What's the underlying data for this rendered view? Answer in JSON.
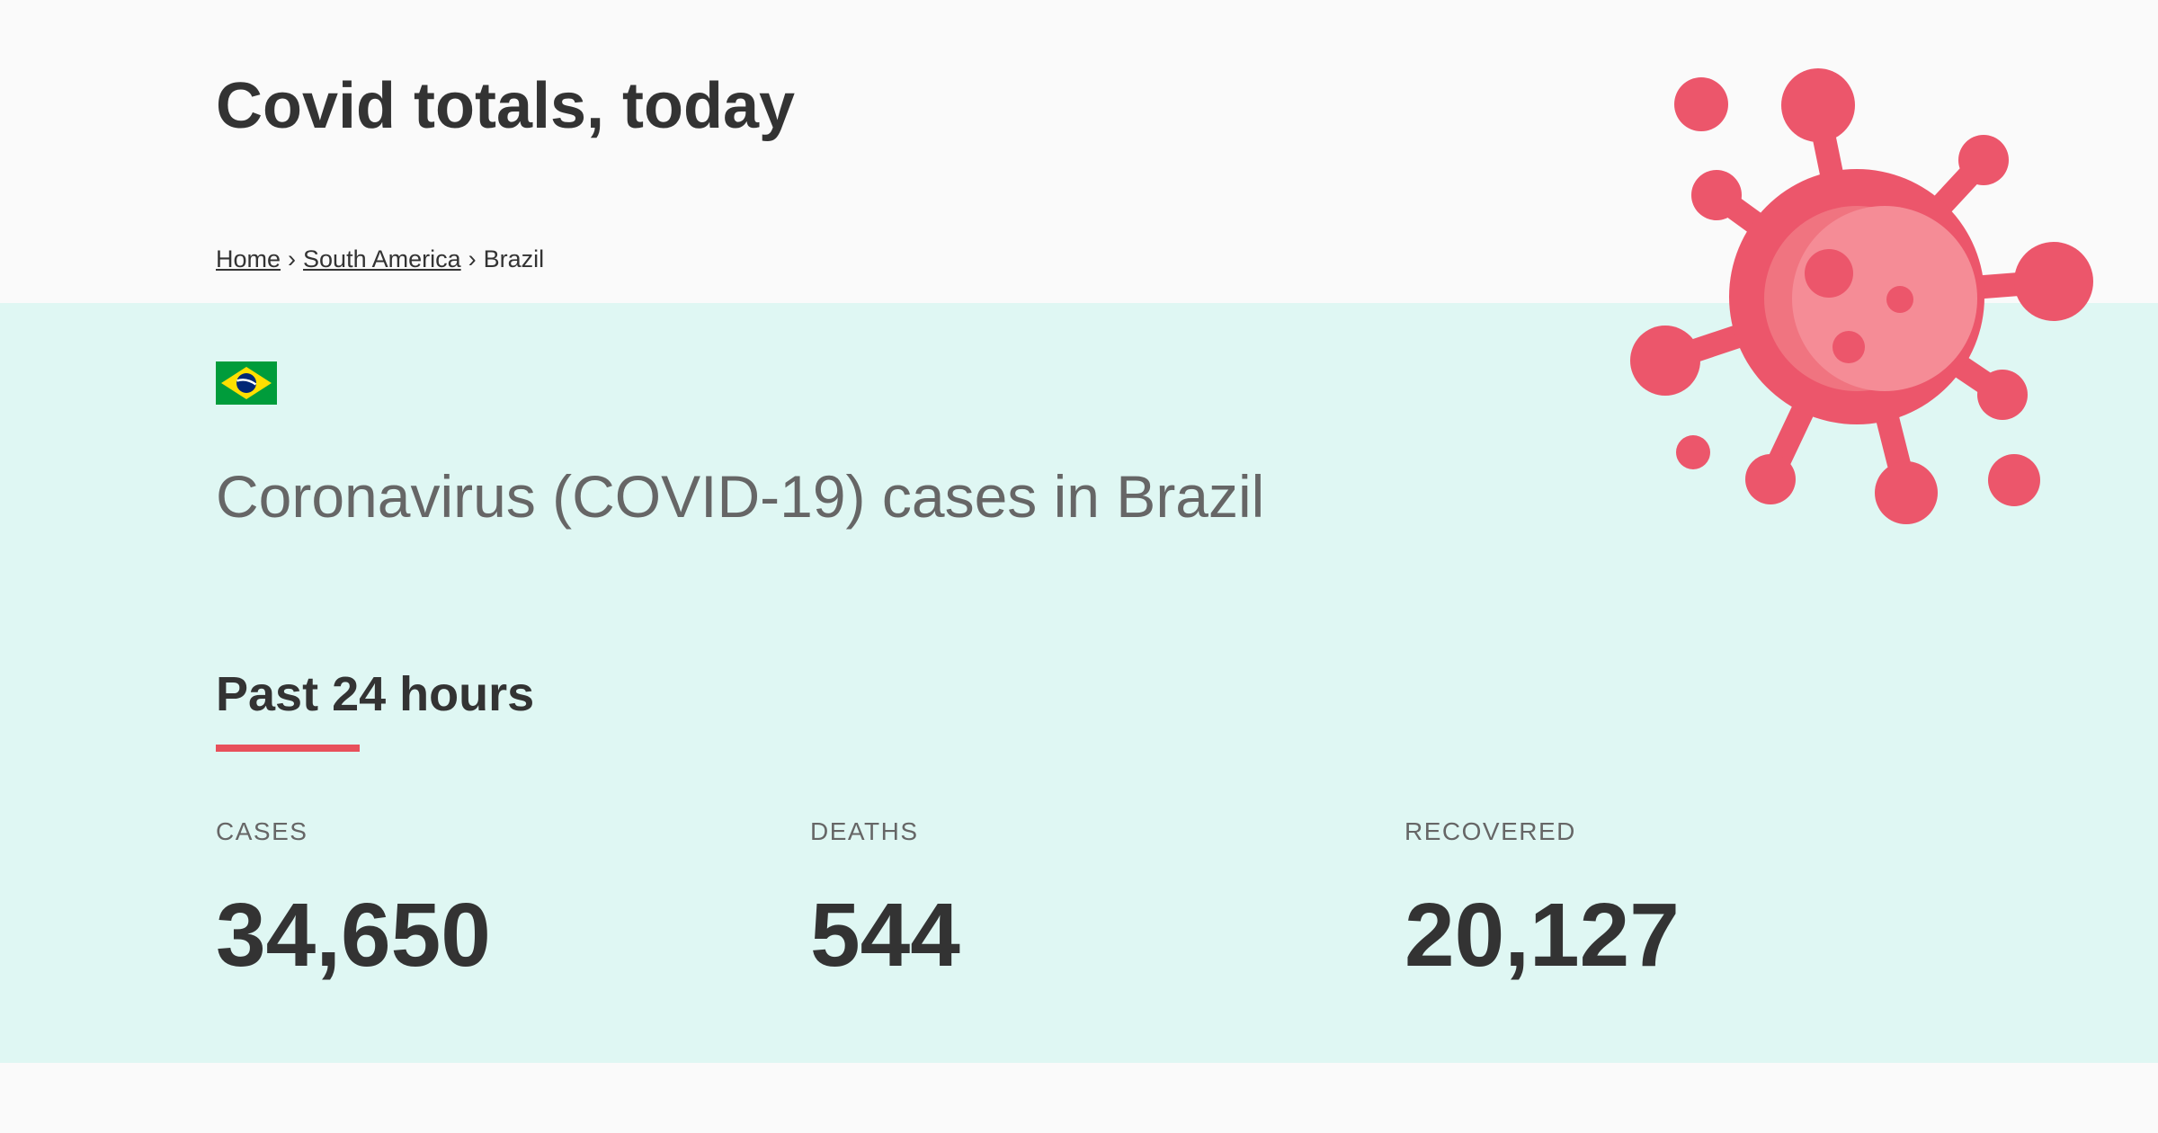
{
  "header": {
    "title": "Covid totals, today"
  },
  "breadcrumb": {
    "home": "Home",
    "region": "South America",
    "current": "Brazil",
    "separator": "›"
  },
  "country": {
    "flag_icon": "brazil-flag",
    "flag_colors": {
      "green": "#009c3b",
      "yellow": "#ffdf00",
      "blue": "#002776"
    },
    "heading": "Coronavirus (COVID-19) cases in Brazil"
  },
  "period": {
    "title": "Past 24 hours",
    "underline_color": "#e8505b"
  },
  "stats": {
    "cases_label": "CASES",
    "cases_value": "34,650",
    "deaths_label": "DEATHS",
    "deaths_value": "544",
    "recovered_label": "RECOVERED",
    "recovered_value": "20,127"
  },
  "illustration": {
    "icon": "coronavirus-icon",
    "color": "#ec566b"
  },
  "colors": {
    "band_background": "#dff7f3",
    "page_background": "#fafafa",
    "accent": "#e8505b"
  }
}
